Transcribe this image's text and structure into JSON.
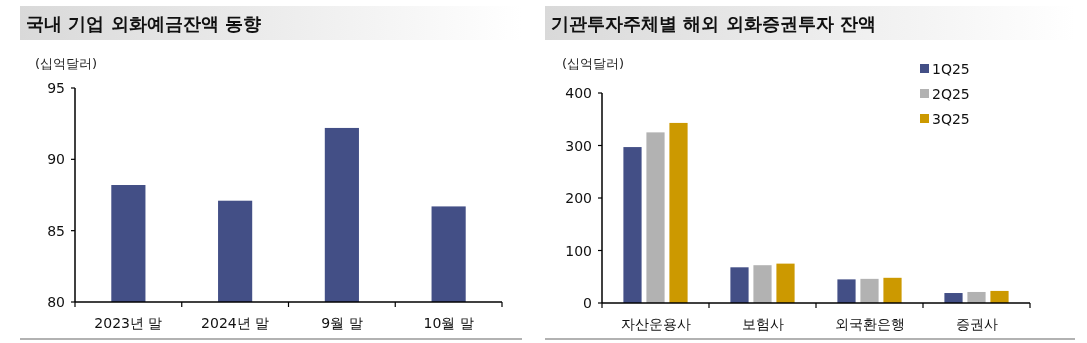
{
  "chart_data": [
    {
      "type": "bar",
      "title": "국내 기업 외화예금잔액 동향",
      "ylabel": "(십억달러)",
      "categories": [
        "2023년 말",
        "2024년 말",
        "9월 말",
        "10월 말"
      ],
      "series": [
        {
          "color": "#434f86",
          "values": [
            88.2,
            87.1,
            92.2,
            86.7
          ]
        }
      ],
      "ylim": [
        80,
        95
      ],
      "yticks": [
        80,
        85,
        90,
        95
      ]
    },
    {
      "type": "bar",
      "title": "기관투자주체별 해외 외화증권투자 잔액",
      "ylabel": "(십억달러)",
      "categories": [
        "자산운용사",
        "보험사",
        "외국환은행",
        "증권사"
      ],
      "series": [
        {
          "name": "1Q25",
          "color": "#434f86",
          "values": [
            297,
            68,
            45,
            19
          ]
        },
        {
          "name": "2Q25",
          "color": "#b2b2b2",
          "values": [
            325,
            72,
            46,
            21
          ]
        },
        {
          "name": "3Q25",
          "color": "#cc9900",
          "values": [
            343,
            75,
            48,
            23
          ]
        }
      ],
      "ylim": [
        0,
        400
      ],
      "yticks": [
        0,
        100,
        200,
        300,
        400
      ],
      "legend": "top right"
    }
  ]
}
